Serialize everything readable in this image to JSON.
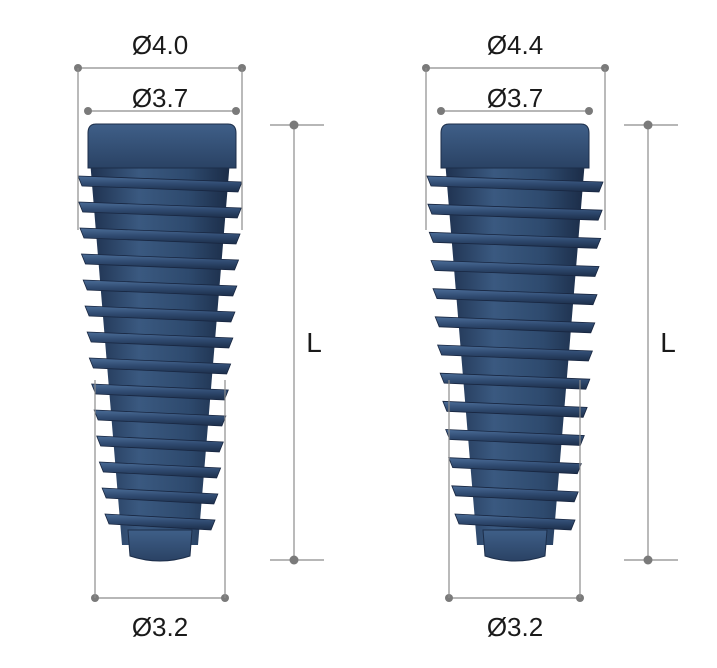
{
  "implants": [
    {
      "name": "implant-4-0",
      "outer_diameter": "Ø4.0",
      "platform_diameter": "Ø3.7",
      "apex_diameter": "Ø3.2",
      "length_label": "L"
    },
    {
      "name": "implant-4-4",
      "outer_diameter": "Ø4.4",
      "platform_diameter": "Ø3.7",
      "apex_diameter": "Ø3.2",
      "length_label": "L"
    }
  ],
  "colors": {
    "implant_body": "#2c4466",
    "implant_thread": "#3b5a82",
    "implant_dark": "#1a2b44",
    "dimension_line": "#8c8c8c",
    "text": "#1a1a1a"
  }
}
